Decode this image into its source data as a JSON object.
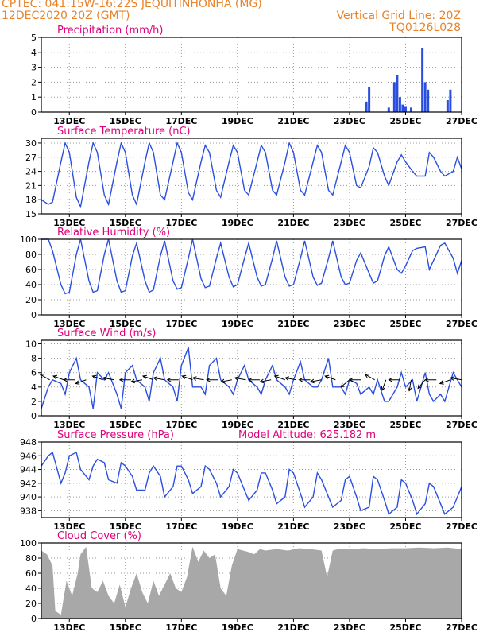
{
  "header": {
    "left_line1": "CPTEC:   041:15W-16:22S   JEQUITINHONHA (MG)",
    "left_line2": "12DEC2020 20Z (GMT)",
    "right_line1": "Vertical Grid Line: 20Z",
    "right_line2": "TQ0126L028",
    "altitude_label": "Model Altitude: 625.182 m"
  },
  "colors": {
    "header": "#e8832a",
    "panel_title": "#e0007a",
    "line": "#2a4fe0",
    "bar": "#2a4fe0",
    "cloud": "#a8a8a8",
    "grid": "#9a9a9a"
  },
  "x_ticks": [
    "13DEC",
    "15DEC",
    "17DEC",
    "19DEC",
    "21DEC",
    "23DEC",
    "25DEC",
    "27DEC"
  ],
  "chart_data": [
    {
      "type": "bar",
      "title": "Precipitation (mm/h)",
      "x": [
        23.6,
        23.7,
        24.4,
        24.6,
        24.7,
        24.8,
        24.9,
        25.0,
        25.2,
        25.6,
        25.7,
        25.8,
        26.5,
        26.6
      ],
      "values": [
        0.7,
        1.7,
        0.3,
        2.0,
        2.5,
        1.0,
        0.5,
        0.4,
        0.3,
        4.3,
        2.0,
        1.5,
        0.8,
        1.5
      ],
      "ylim": [
        0,
        5
      ],
      "yticks": [
        0,
        1,
        2,
        3,
        4,
        5
      ]
    },
    {
      "type": "line",
      "title": "Surface Temperature (nC)",
      "x": [
        12.0,
        12.25,
        12.4,
        12.7,
        12.85,
        13.0,
        13.25,
        13.4,
        13.7,
        13.85,
        14.0,
        14.25,
        14.4,
        14.7,
        14.85,
        15.0,
        15.25,
        15.4,
        15.7,
        15.85,
        16.0,
        16.25,
        16.4,
        16.7,
        16.85,
        17.0,
        17.25,
        17.4,
        17.7,
        17.85,
        18.0,
        18.25,
        18.4,
        18.7,
        18.85,
        19.0,
        19.25,
        19.4,
        19.7,
        19.85,
        20.0,
        20.25,
        20.4,
        20.7,
        20.85,
        21.0,
        21.25,
        21.4,
        21.7,
        21.85,
        22.0,
        22.25,
        22.4,
        22.7,
        22.85,
        23.0,
        23.25,
        23.4,
        23.7,
        23.85,
        24.0,
        24.25,
        24.4,
        24.7,
        24.85,
        25.0,
        25.25,
        25.4,
        25.7,
        25.85,
        26.0,
        26.25,
        26.4,
        26.7,
        26.85,
        27.0
      ],
      "values": [
        18,
        17,
        17.5,
        26,
        30,
        28,
        18.5,
        16.5,
        26,
        30,
        28,
        19,
        17,
        26,
        30,
        28,
        19,
        17,
        26,
        30,
        28,
        19,
        18,
        26,
        30,
        28,
        19.5,
        18,
        26,
        29.5,
        28,
        20,
        18.5,
        26,
        29.5,
        28,
        20,
        19,
        26,
        29.5,
        28,
        20,
        19,
        26,
        30,
        28,
        20,
        19,
        26,
        29.5,
        28,
        20,
        19,
        26,
        29.5,
        28,
        21,
        20.5,
        25,
        29,
        28,
        23,
        21,
        26,
        27.5,
        26,
        24,
        23,
        23,
        28,
        27,
        24,
        23,
        24,
        27,
        24.5
      ],
      "ylim": [
        15,
        31
      ],
      "yticks": [
        15,
        18,
        21,
        24,
        27,
        30
      ]
    },
    {
      "type": "line",
      "title": "Relative Humidity (%)",
      "x": [
        12.0,
        12.25,
        12.4,
        12.7,
        12.85,
        13.0,
        13.25,
        13.4,
        13.7,
        13.85,
        14.0,
        14.25,
        14.4,
        14.7,
        14.85,
        15.0,
        15.25,
        15.4,
        15.7,
        15.85,
        16.0,
        16.25,
        16.4,
        16.7,
        16.85,
        17.0,
        17.25,
        17.4,
        17.7,
        17.85,
        18.0,
        18.25,
        18.4,
        18.7,
        18.85,
        19.0,
        19.25,
        19.4,
        19.7,
        19.85,
        20.0,
        20.25,
        20.4,
        20.7,
        20.85,
        21.0,
        21.25,
        21.4,
        21.7,
        21.85,
        22.0,
        22.25,
        22.4,
        22.7,
        22.85,
        23.0,
        23.25,
        23.4,
        23.7,
        23.85,
        24.0,
        24.25,
        24.4,
        24.7,
        24.85,
        25.0,
        25.25,
        25.4,
        25.7,
        25.85,
        26.0,
        26.25,
        26.4,
        26.7,
        26.85,
        27.0
      ],
      "values": [
        100,
        100,
        85,
        40,
        28,
        30,
        80,
        100,
        45,
        30,
        32,
        80,
        100,
        45,
        30,
        32,
        78,
        95,
        45,
        30,
        33,
        78,
        98,
        45,
        34,
        36,
        75,
        100,
        48,
        36,
        38,
        75,
        95,
        50,
        37,
        40,
        75,
        95,
        50,
        38,
        40,
        75,
        98,
        50,
        38,
        40,
        75,
        98,
        50,
        39,
        42,
        75,
        98,
        50,
        40,
        42,
        72,
        82,
        55,
        42,
        45,
        78,
        90,
        60,
        55,
        65,
        85,
        88,
        90,
        60,
        72,
        92,
        95,
        75,
        55,
        72
      ],
      "ylim": [
        0,
        100
      ],
      "yticks": [
        0,
        20,
        40,
        60,
        80,
        100
      ]
    },
    {
      "type": "line",
      "title": "Surface Wind (m/s)",
      "x": [
        12.0,
        12.25,
        12.4,
        12.7,
        12.85,
        13.0,
        13.25,
        13.4,
        13.7,
        13.85,
        14.0,
        14.25,
        14.4,
        14.7,
        14.85,
        15.0,
        15.25,
        15.4,
        15.7,
        15.85,
        16.0,
        16.25,
        16.4,
        16.7,
        16.85,
        17.0,
        17.25,
        17.4,
        17.7,
        17.85,
        18.0,
        18.25,
        18.4,
        18.7,
        18.85,
        19.0,
        19.25,
        19.4,
        19.7,
        19.85,
        20.0,
        20.25,
        20.4,
        20.7,
        20.85,
        21.0,
        21.25,
        21.4,
        21.7,
        21.85,
        22.0,
        22.25,
        22.4,
        22.7,
        22.85,
        23.0,
        23.25,
        23.4,
        23.7,
        23.85,
        24.0,
        24.25,
        24.4,
        24.7,
        24.85,
        25.0,
        25.25,
        25.4,
        25.7,
        25.85,
        26.0,
        26.25,
        26.4,
        26.7,
        26.85,
        27.0
      ],
      "values": [
        1,
        4,
        5,
        4.5,
        3,
        6,
        8,
        5,
        4,
        1,
        6,
        5,
        6,
        3,
        1,
        6,
        7,
        5,
        4,
        2,
        6,
        8,
        5,
        4,
        2,
        7,
        9.5,
        4,
        4,
        3,
        7,
        8,
        5,
        4,
        3,
        5,
        7,
        5,
        4,
        3,
        5,
        7,
        5,
        4,
        3,
        5,
        7.5,
        5,
        4,
        4,
        5,
        8,
        4,
        4,
        3,
        5,
        4.5,
        3,
        4,
        3,
        5,
        2,
        2,
        4,
        6,
        4,
        5,
        2,
        6,
        3,
        2,
        3,
        2,
        6,
        5,
        4
      ],
      "ylim": [
        0,
        10.5
      ],
      "yticks": [
        0,
        2,
        4,
        6,
        8,
        10
      ],
      "arrows_x": [
        12.3,
        12.8,
        13.2,
        13.6,
        14.2,
        14.6,
        15.2,
        15.6,
        16.0,
        16.4,
        16.9,
        17.4,
        17.8,
        18.3,
        18.8,
        19.3,
        19.8,
        20.2,
        20.7,
        21.1,
        21.6,
        22.0,
        22.5,
        23.0,
        23.4,
        23.9,
        24.3,
        24.8,
        25.2,
        25.7,
        26.1,
        26.6,
        27.0
      ],
      "arrows_dir_deg": [
        210,
        200,
        180,
        160,
        200,
        190,
        180,
        170,
        200,
        190,
        180,
        200,
        190,
        180,
        170,
        190,
        180,
        170,
        200,
        190,
        180,
        170,
        200,
        140,
        180,
        210,
        110,
        180,
        100,
        130,
        180,
        160,
        190
      ]
    },
    {
      "type": "line",
      "title": "Surface Pressure (hPa)",
      "x": [
        12.0,
        12.25,
        12.4,
        12.7,
        12.85,
        13.0,
        13.25,
        13.4,
        13.7,
        13.85,
        14.0,
        14.25,
        14.4,
        14.7,
        14.85,
        15.0,
        15.25,
        15.4,
        15.7,
        15.85,
        16.0,
        16.25,
        16.4,
        16.7,
        16.85,
        17.0,
        17.25,
        17.4,
        17.7,
        17.85,
        18.0,
        18.25,
        18.4,
        18.7,
        18.85,
        19.0,
        19.25,
        19.4,
        19.7,
        19.85,
        20.0,
        20.25,
        20.4,
        20.7,
        20.85,
        21.0,
        21.25,
        21.4,
        21.7,
        21.85,
        22.0,
        22.25,
        22.4,
        22.7,
        22.85,
        23.0,
        23.25,
        23.4,
        23.7,
        23.85,
        24.0,
        24.25,
        24.4,
        24.7,
        24.85,
        25.0,
        25.25,
        25.4,
        25.7,
        25.85,
        26.0,
        26.25,
        26.4,
        26.7,
        26.85,
        27.0
      ],
      "values": [
        944.5,
        946,
        946.5,
        942,
        943.5,
        946,
        946.5,
        944,
        942.5,
        944.5,
        945.5,
        945,
        942.5,
        942,
        945,
        944.5,
        943,
        941,
        941,
        943.5,
        944.5,
        943,
        940,
        941.5,
        944.5,
        944.5,
        942.5,
        940.5,
        941.5,
        944.5,
        944,
        942,
        940,
        941.5,
        944,
        943.5,
        941,
        939.5,
        941,
        943.5,
        943.5,
        941,
        939,
        940,
        944,
        943.5,
        940.5,
        938.5,
        940,
        943.5,
        942.5,
        940,
        938.5,
        939.5,
        942.5,
        943,
        940,
        938,
        938.5,
        943,
        942.5,
        939.5,
        937.5,
        938.5,
        942.5,
        942,
        939.5,
        937.5,
        939,
        942,
        941.5,
        939,
        937.5,
        938.5,
        940,
        941.5
      ],
      "ylim": [
        937,
        948
      ],
      "yticks": [
        938,
        940,
        942,
        944,
        946,
        948
      ]
    },
    {
      "type": "area",
      "title": "Cloud Cover (%)",
      "x": [
        12.0,
        12.2,
        12.4,
        12.5,
        12.7,
        12.9,
        13.1,
        13.3,
        13.4,
        13.6,
        13.8,
        14.0,
        14.2,
        14.4,
        14.6,
        14.8,
        15.0,
        15.2,
        15.4,
        15.6,
        15.8,
        16.0,
        16.2,
        16.4,
        16.6,
        16.8,
        17.0,
        17.2,
        17.4,
        17.6,
        17.8,
        18.0,
        18.2,
        18.4,
        18.6,
        18.8,
        19.0,
        19.2,
        19.4,
        19.6,
        19.8,
        20.0,
        20.4,
        20.8,
        21.2,
        21.6,
        22.0,
        22.2,
        22.4,
        22.6,
        23.0,
        23.5,
        24.0,
        24.5,
        25.0,
        25.5,
        26.0,
        26.5,
        27.0
      ],
      "values": [
        90,
        85,
        70,
        10,
        5,
        50,
        30,
        60,
        85,
        95,
        40,
        35,
        50,
        30,
        20,
        45,
        15,
        40,
        60,
        35,
        20,
        50,
        30,
        45,
        60,
        40,
        35,
        55,
        95,
        75,
        90,
        80,
        85,
        40,
        30,
        70,
        92,
        90,
        88,
        85,
        92,
        90,
        92,
        90,
        93,
        92,
        90,
        55,
        90,
        92,
        92,
        93,
        92,
        93,
        93,
        94,
        93,
        94,
        92
      ],
      "ylim": [
        0,
        100
      ],
      "yticks": [
        0,
        20,
        40,
        60,
        80,
        100
      ]
    }
  ]
}
